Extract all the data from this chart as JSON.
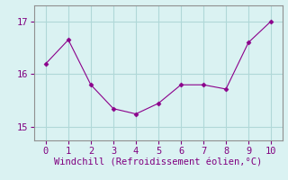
{
  "x": [
    0,
    1,
    2,
    3,
    4,
    5,
    6,
    7,
    8,
    9,
    10
  ],
  "y": [
    16.2,
    16.65,
    15.8,
    15.35,
    15.25,
    15.45,
    15.8,
    15.8,
    15.72,
    16.6,
    17.0
  ],
  "line_color": "#8B008B",
  "marker": "D",
  "marker_size": 2.5,
  "bg_color": "#daf2f2",
  "grid_color": "#b0d8d8",
  "xlabel": "Windchill (Refroidissement éolien,°C)",
  "xlabel_color": "#800080",
  "xlabel_fontsize": 7.5,
  "tick_color": "#800080",
  "tick_fontsize": 7.5,
  "xlim": [
    -0.5,
    10.5
  ],
  "ylim": [
    14.75,
    17.3
  ],
  "yticks": [
    15,
    16,
    17
  ],
  "xticks": [
    0,
    1,
    2,
    3,
    4,
    5,
    6,
    7,
    8,
    9,
    10
  ],
  "spine_color": "#909090"
}
